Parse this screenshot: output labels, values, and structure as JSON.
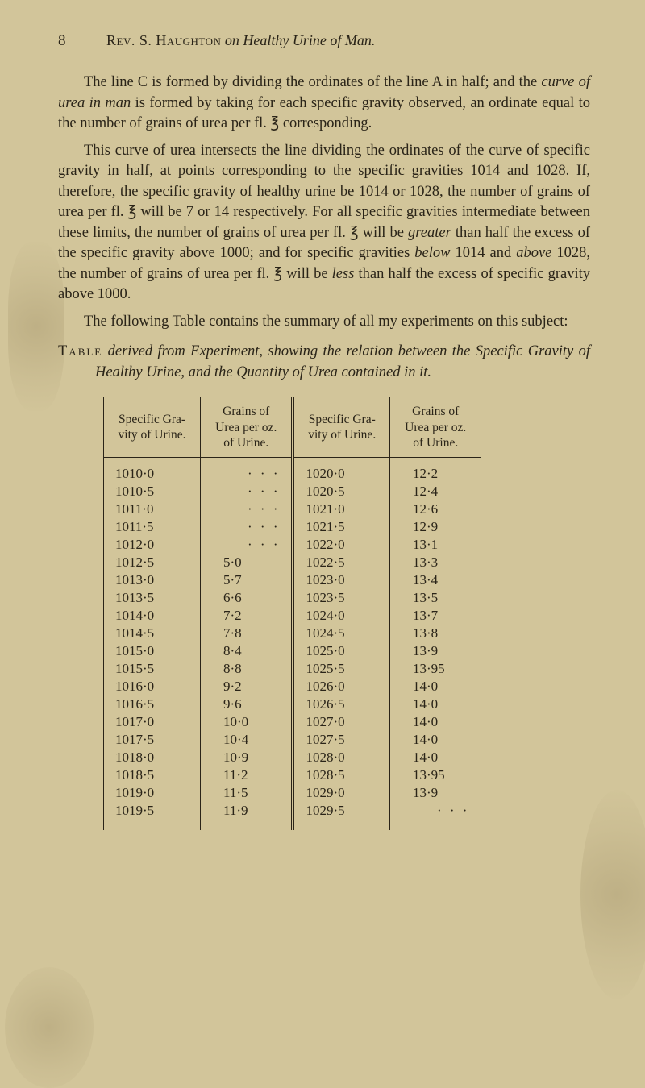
{
  "page_number": "8",
  "running_head": {
    "author_sc": "Rev. S. Haughton",
    "connector_italic": " on ",
    "title_italic": "Healthy Urine of Man."
  },
  "paragraphs": {
    "p1_a": "The line C is formed by dividing the ordinates of the line A in half; and the ",
    "p1_b_italic": "curve of urea in man",
    "p1_c": " is formed by taking for each specific gravity observed, an ordinate equal to the number of grains of urea per fl. ℥ corresponding.",
    "p2": "This curve of urea intersects the line dividing the ordinates of the curve of specific gravity in half, at points corresponding to the specific gravities 1014 and 1028. If, therefore, the specific gravity of healthy urine be 1014 or 1028, the number of grains of urea per fl. ℥ will be 7 or 14 respectively. For all specific gravities intermediate between these limits, the number of grains of urea per fl. ℥ will be ",
    "p2_b_italic": "greater",
    "p2_c": " than half the excess of the specific gravity above 1000; and for specific gravities ",
    "p2_d_italic": "below",
    "p2_e": " 1014 and ",
    "p2_f_italic": "above",
    "p2_g": " 1028, the number of grains of urea per fl. ℥ will be ",
    "p2_h_italic": "less",
    "p2_i": " than half the excess of specific gravity above 1000.",
    "p3": "The following Table contains the summary of all my experiments on this subject:—"
  },
  "table_caption": {
    "a_sc": "Table",
    "b_italic": " derived from Experiment, showing the relation between the Specific Gravity of Healthy Urine, and the Quantity of Urea contained in it."
  },
  "table": {
    "headers": {
      "sg": "Specific Gra-\nvity of Urine.",
      "urea": "Grains of\nUrea per oz.\nof Urine."
    },
    "left": [
      [
        "1010·0",
        "·  ·  ·"
      ],
      [
        "1010·5",
        "·  ·  ·"
      ],
      [
        "1011·0",
        "·  ·  ·"
      ],
      [
        "1011·5",
        "·  ·  ·"
      ],
      [
        "1012·0",
        "·  ·  ·"
      ],
      [
        "1012·5",
        "5·0"
      ],
      [
        "1013·0",
        "5·7"
      ],
      [
        "1013·5",
        "6·6"
      ],
      [
        "1014·0",
        "7·2"
      ],
      [
        "1014·5",
        "7·8"
      ],
      [
        "1015·0",
        "8·4"
      ],
      [
        "1015·5",
        "8·8"
      ],
      [
        "1016·0",
        "9·2"
      ],
      [
        "1016·5",
        "9·6"
      ],
      [
        "1017·0",
        "10·0"
      ],
      [
        "1017·5",
        "10·4"
      ],
      [
        "1018·0",
        "10·9"
      ],
      [
        "1018·5",
        "11·2"
      ],
      [
        "1019·0",
        "11·5"
      ],
      [
        "1019·5",
        "11·9"
      ]
    ],
    "right": [
      [
        "1020·0",
        "12·2"
      ],
      [
        "1020·5",
        "12·4"
      ],
      [
        "1021·0",
        "12·6"
      ],
      [
        "1021·5",
        "12·9"
      ],
      [
        "1022·0",
        "13·1"
      ],
      [
        "1022·5",
        "13·3"
      ],
      [
        "1023·0",
        "13·4"
      ],
      [
        "1023·5",
        "13·5"
      ],
      [
        "1024·0",
        "13·7"
      ],
      [
        "1024·5",
        "13·8"
      ],
      [
        "1025·0",
        "13·9"
      ],
      [
        "1025·5",
        "13·95"
      ],
      [
        "1026·0",
        "14·0"
      ],
      [
        "1026·5",
        "14·0"
      ],
      [
        "1027·0",
        "14·0"
      ],
      [
        "1027·5",
        "14·0"
      ],
      [
        "1028·0",
        "14·0"
      ],
      [
        "1028·5",
        "13·95"
      ],
      [
        "1029·0",
        "13·9"
      ],
      [
        "1029·5",
        "·  ·  ·"
      ]
    ]
  },
  "colors": {
    "paper": "#d2c59a",
    "ink": "#2a2418"
  }
}
